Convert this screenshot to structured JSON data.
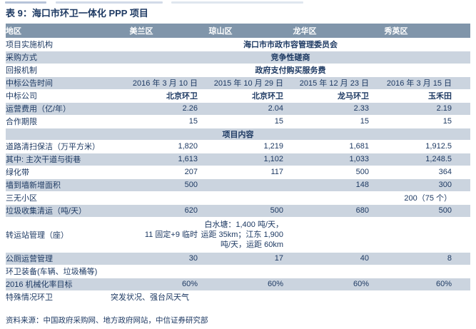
{
  "title": "表 9：海口市环卫一体化 PPP 项目",
  "source": "资料来源：中国政府采购网、地方政府网站，中信证券研究部",
  "colors": {
    "header_bg": "#8095aa",
    "header_text": "#ffffff",
    "row_shade": "#cbd4df",
    "text": "#1e3a63",
    "rule": "#45546b"
  },
  "table": {
    "header": {
      "label": "地区",
      "columns": [
        "美兰区",
        "琼山区",
        "龙华区",
        "秀英区"
      ]
    },
    "rows": [
      {
        "type": "merged-center",
        "shaded": false,
        "label": "项目实施机构",
        "value": "海口市市政市容管理委员会"
      },
      {
        "type": "merged-center",
        "shaded": true,
        "label": "采购方式",
        "value": "竞争性磋商"
      },
      {
        "type": "merged-center",
        "shaded": false,
        "label": "回报机制",
        "value": "政府支付购买服务费"
      },
      {
        "type": "data",
        "shaded": true,
        "label": "中标公告时间",
        "cells": [
          "2016 年 3 月 10 日",
          "2015 年 10 月 29 日",
          "2015 年 12 月 23 日",
          "2016 年 3 月 15 日"
        ]
      },
      {
        "type": "data",
        "shaded": false,
        "label": "中标公司",
        "bold": true,
        "cells": [
          "北京环卫",
          "北京环卫",
          "龙马环卫",
          "玉禾田"
        ]
      },
      {
        "type": "data",
        "shaded": true,
        "label": "运营费用（亿/年）",
        "cells": [
          "2.26",
          "2.04",
          "2.33",
          "2.19"
        ]
      },
      {
        "type": "data",
        "shaded": false,
        "label": "合作期限",
        "cells": [
          "15",
          "15",
          "15",
          "15"
        ]
      },
      {
        "type": "section",
        "shaded": true,
        "value": "项目内容"
      },
      {
        "type": "data",
        "shaded": false,
        "label": "道路清扫保洁（万平方米）",
        "cells": [
          "1,820",
          "1,219",
          "1,681",
          "1,912.5"
        ]
      },
      {
        "type": "data",
        "shaded": true,
        "label": "其中: 主次干道与街巷",
        "cells": [
          "1,613",
          "1,102",
          "1,033",
          "1,248.5"
        ]
      },
      {
        "type": "data",
        "shaded": false,
        "label": "绿化带",
        "cells": [
          "207",
          "117",
          "500",
          "364"
        ]
      },
      {
        "type": "data",
        "shaded": true,
        "label": "墙到墙新增面积",
        "cells": [
          "500",
          "",
          "148",
          "300"
        ]
      },
      {
        "type": "data",
        "shaded": false,
        "label": "三无小区",
        "cells": [
          "",
          "",
          "",
          "200（75 个）"
        ]
      },
      {
        "type": "data",
        "shaded": true,
        "label": "垃圾收集清运（吨/天）",
        "cells": [
          "620",
          "500",
          "680",
          "500"
        ]
      },
      {
        "type": "data",
        "shaded": false,
        "label": "转运站管理（座）",
        "tall": true,
        "cells": [
          "11 固定+9 临时",
          "白水塘：1,400 吨/天，运距 35km；江东 1,900 吨/天，运距 60km",
          "",
          ""
        ]
      },
      {
        "type": "data",
        "shaded": true,
        "label": "公厕运营管理",
        "cells": [
          "30",
          "17",
          "40",
          "8"
        ]
      },
      {
        "type": "data",
        "shaded": false,
        "label": "环卫装备(车辆、垃圾桶等)",
        "cells": [
          "",
          "",
          "",
          ""
        ]
      },
      {
        "type": "data",
        "shaded": true,
        "label": "2016 机械化率目标",
        "cells": [
          "60%",
          "60%",
          "60%",
          "60%"
        ]
      },
      {
        "type": "merged-left",
        "shaded": false,
        "label": "特殊情况环卫",
        "value": "突发状况、强台风天气"
      }
    ]
  }
}
